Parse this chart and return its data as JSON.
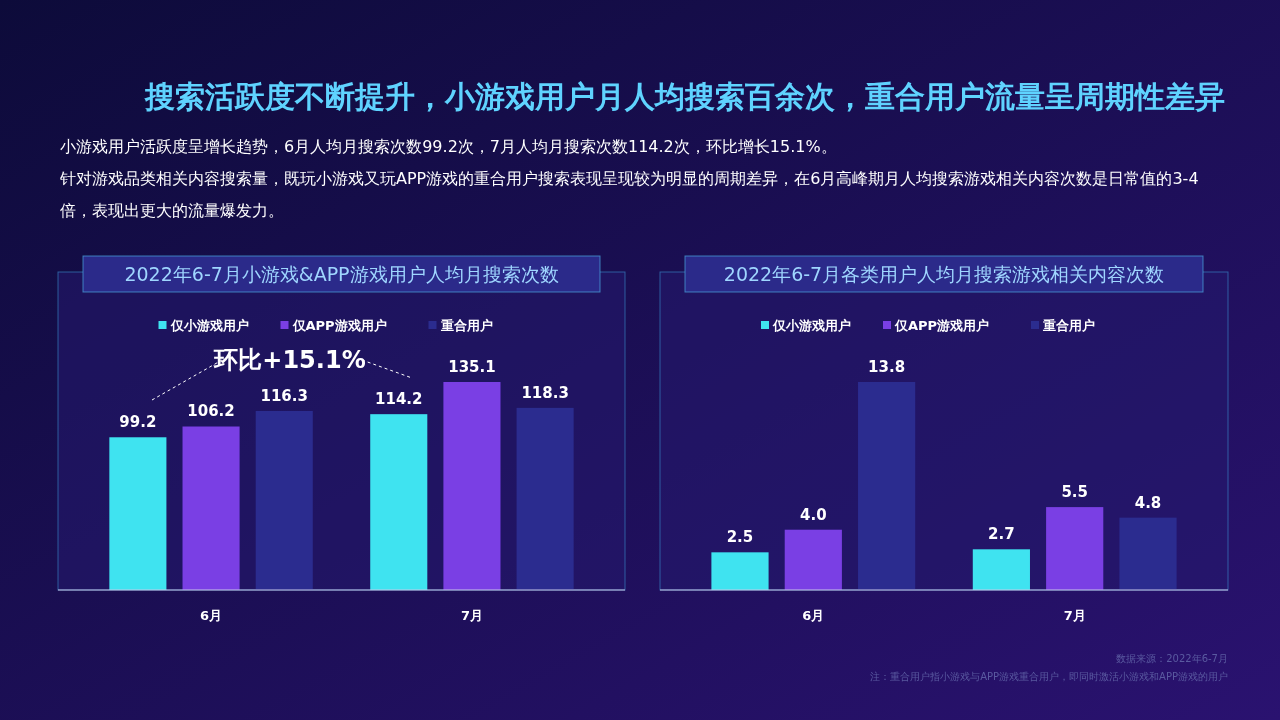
{
  "chart_data": [
    {
      "type": "bar",
      "title": "2022年6-7月小游戏&APP游戏用户人均月搜索次数",
      "categories": [
        "6月",
        "7月"
      ],
      "series": [
        {
          "name": "仅小游戏用户",
          "color": "#3fe3f0",
          "values": [
            99.2,
            114.2
          ]
        },
        {
          "name": "仅APP游戏用户",
          "color": "#7a3fe4",
          "values": [
            106.2,
            135.1
          ]
        },
        {
          "name": "重合用户",
          "color": "#2b2c8f",
          "values": [
            116.3,
            118.3
          ]
        }
      ],
      "data_labels": true,
      "legend": "top",
      "annotations": [
        "搜索活跃度不断提升，小游戏用户月人均搜索百余次，重合用户流量呈周期性差异",
        "小游戏用户活跃度呈增长趋势，6月人均月搜索次数99.2次，7月人均月搜索次数114.2次，环比增长15.1%。",
        "针对游戏品类相关内容搜索量，既玩小游戏又玩APP游戏的重合用户搜索表现呈现较为明显的周期差异，在6月高峰期月人均搜索游戏相关内容次数是日常值的3-4倍，表现出更大的流量爆发力。",
        "环比+15.1%"
      ]
    },
    {
      "type": "bar",
      "title": "2022年6-7月各类用户人均月搜索游戏相关内容次数",
      "categories": [
        "6月",
        "7月"
      ],
      "series": [
        {
          "name": "仅小游戏用户",
          "color": "#3fe3f0",
          "values": [
            2.5,
            2.7
          ],
          "value_labels": [
            "2.5",
            "2.7"
          ]
        },
        {
          "name": "仅APP游戏用户",
          "color": "#7a3fe4",
          "values": [
            4.0,
            5.5
          ],
          "value_labels": [
            "4.0",
            "5.5"
          ]
        },
        {
          "name": "重合用户",
          "color": "#2b2c8f",
          "values": [
            13.8,
            4.8
          ],
          "value_labels": [
            "13.8",
            "4.8"
          ]
        }
      ],
      "legend": "top",
      "annotations": [
        "数据来源：2022年6-7月",
        "注：重合用户指小游戏与APP游戏重合用户，即同时激活小游戏和APP游戏的用户"
      ]
    }
  ]
}
